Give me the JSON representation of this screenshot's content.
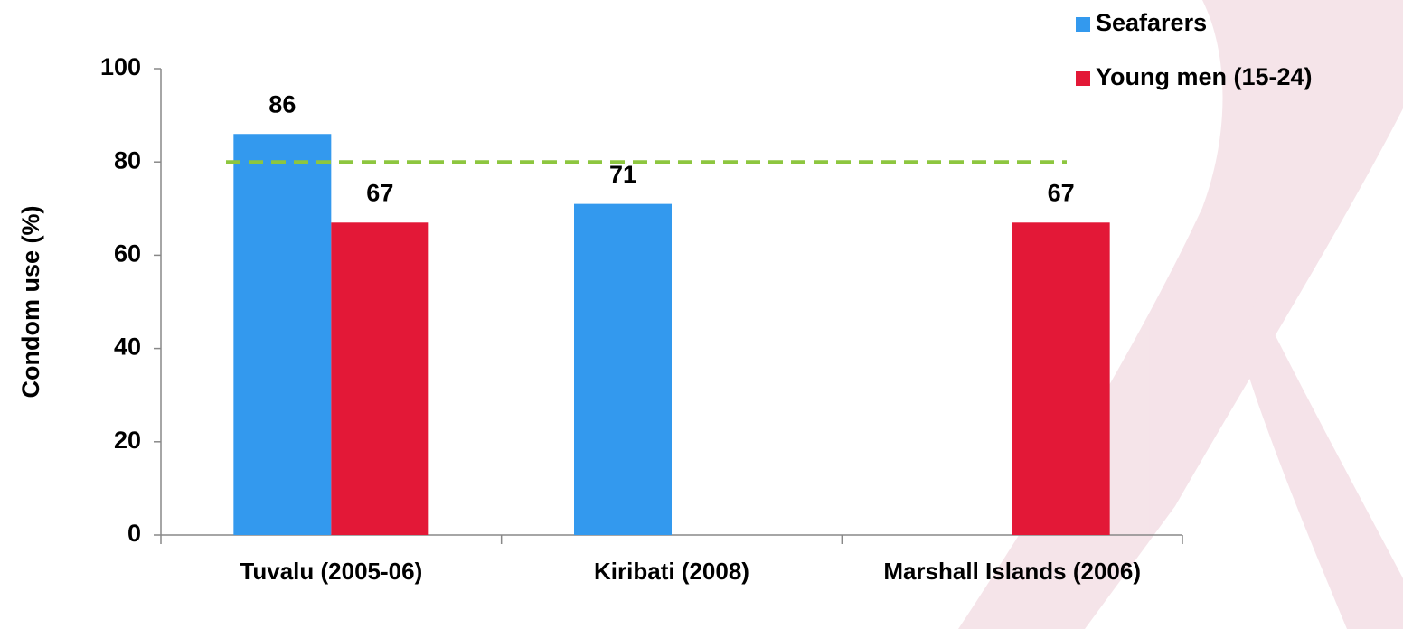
{
  "chart_data": {
    "type": "bar",
    "y_label": "Condom use (%)",
    "categories": [
      "Tuvalu (2005-06)",
      "Kiribati (2008)",
      "Marshall Islands (2006)"
    ],
    "series": [
      {
        "name": "Seafarers",
        "color": "#3399ee",
        "values": [
          86,
          71,
          null
        ]
      },
      {
        "name": "Young men (15-24)",
        "color": "#e31837",
        "values": [
          67,
          null,
          67
        ]
      }
    ],
    "ylim": [
      0,
      100
    ],
    "yticks": [
      0,
      20,
      40,
      60,
      80,
      100
    ],
    "reference_line": {
      "value": 80,
      "color": "#8dc63f"
    },
    "legend": "top-right",
    "grid": false
  }
}
